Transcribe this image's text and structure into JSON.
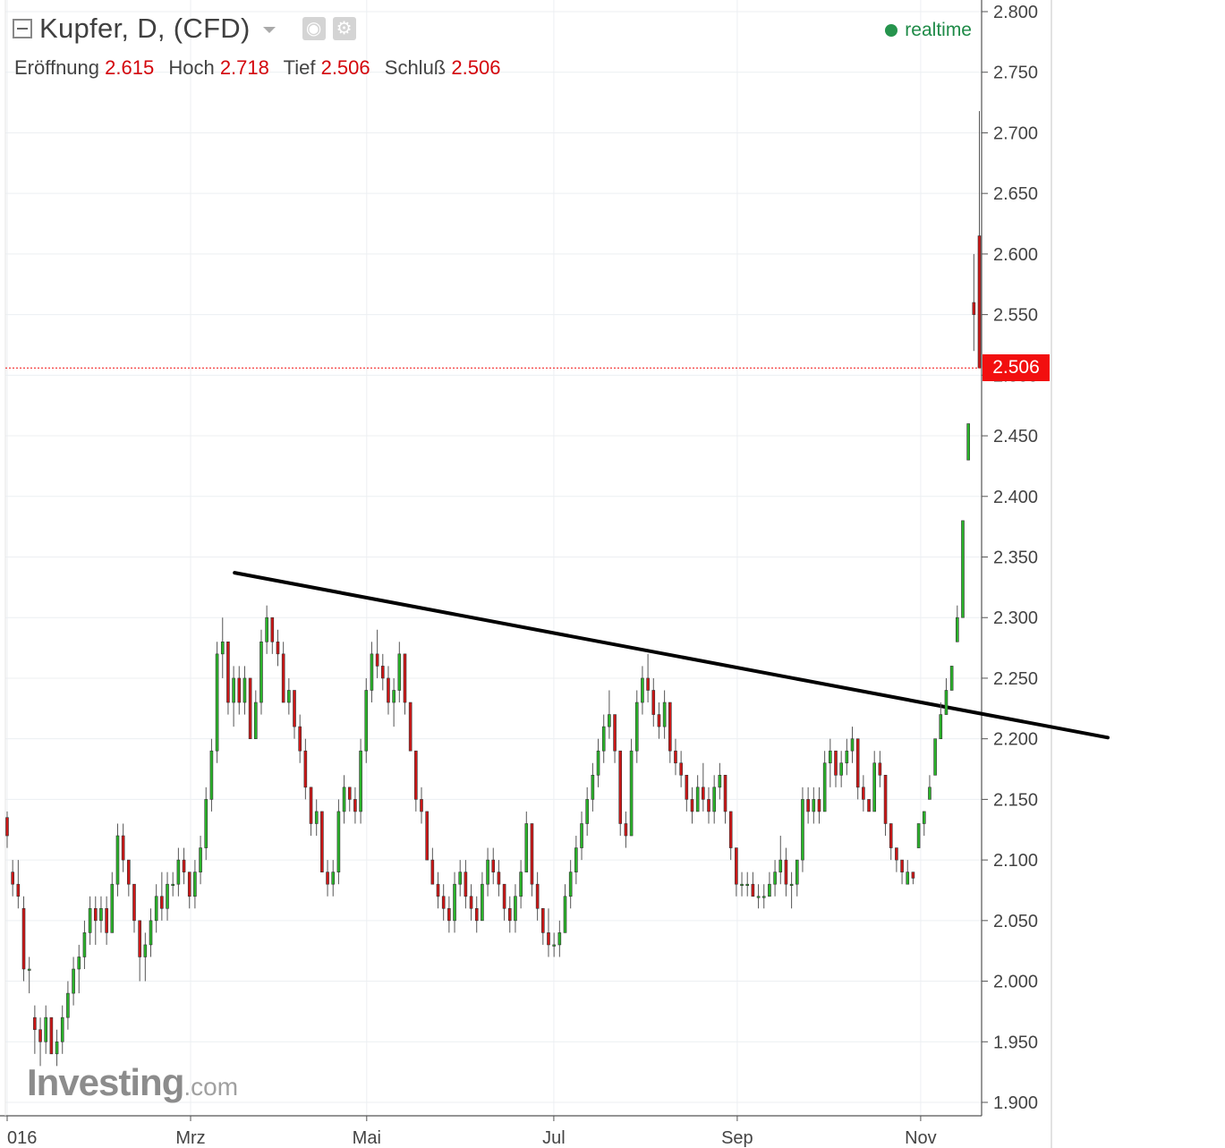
{
  "header": {
    "title": "Kupfer, D, (CFD)",
    "realtime_label": "realtime",
    "ohlc": {
      "open_label": "Eröffnung",
      "open": "2.615",
      "high_label": "Hoch",
      "high": "2.718",
      "low_label": "Tief",
      "low": "2.506",
      "close_label": "Schluß",
      "close": "2.506"
    }
  },
  "last_price_tag": "2.506",
  "logo": {
    "main": "Investing",
    "suffix": ".com"
  },
  "colors": {
    "up": "#2ab32a",
    "down": "#cc1717",
    "price_line": "#f20f0f",
    "trendline": "#000000"
  },
  "chart_data": {
    "type": "candlestick",
    "ylim": [
      1.88,
      2.81
    ],
    "y_ticks": [
      "2.800",
      "2.750",
      "2.700",
      "2.650",
      "2.600",
      "2.550",
      "2.500",
      "2.450",
      "2.400",
      "2.350",
      "2.300",
      "2.250",
      "2.200",
      "2.150",
      "2.100",
      "2.050",
      "2.000",
      "1.950",
      "1.900"
    ],
    "x_labels": [
      {
        "label": "016",
        "day": 0
      },
      {
        "label": "Mrz",
        "day": 50
      },
      {
        "label": "Mai",
        "day": 98
      },
      {
        "label": "Jul",
        "day": 149
      },
      {
        "label": "Sep",
        "day": 199
      },
      {
        "label": "Nov",
        "day": 249
      }
    ],
    "x_day_range": [
      0,
      265
    ],
    "trendline": [
      {
        "day": 62,
        "price": 2.337
      },
      {
        "day": 300,
        "price": 2.201
      }
    ],
    "last_price": 2.506,
    "candles": [
      [
        2.135,
        2.14,
        2.11,
        2.12
      ],
      [
        2.09,
        2.1,
        2.07,
        2.08
      ],
      [
        2.08,
        2.1,
        2.06,
        2.07
      ],
      [
        2.06,
        2.07,
        2.0,
        2.01
      ],
      [
        2.01,
        2.02,
        1.99,
        2.01
      ],
      [
        1.97,
        1.98,
        1.94,
        1.96
      ],
      [
        1.96,
        1.97,
        1.93,
        1.95
      ],
      [
        1.95,
        1.98,
        1.94,
        1.97
      ],
      [
        1.97,
        1.97,
        1.94,
        1.94
      ],
      [
        1.94,
        1.96,
        1.93,
        1.95
      ],
      [
        1.95,
        1.98,
        1.94,
        1.97
      ],
      [
        1.97,
        2.0,
        1.96,
        1.99
      ],
      [
        1.99,
        2.02,
        1.98,
        2.01
      ],
      [
        2.01,
        2.03,
        1.99,
        2.02
      ],
      [
        2.02,
        2.05,
        2.01,
        2.04
      ],
      [
        2.04,
        2.07,
        2.03,
        2.06
      ],
      [
        2.06,
        2.07,
        2.03,
        2.05
      ],
      [
        2.05,
        2.07,
        2.04,
        2.06
      ],
      [
        2.06,
        2.07,
        2.03,
        2.04
      ],
      [
        2.04,
        2.09,
        2.04,
        2.08
      ],
      [
        2.08,
        2.13,
        2.07,
        2.12
      ],
      [
        2.12,
        2.13,
        2.09,
        2.1
      ],
      [
        2.1,
        2.1,
        2.07,
        2.08
      ],
      [
        2.08,
        2.08,
        2.04,
        2.05
      ],
      [
        2.05,
        2.05,
        2.0,
        2.02
      ],
      [
        2.02,
        2.04,
        2.0,
        2.03
      ],
      [
        2.03,
        2.06,
        2.02,
        2.05
      ],
      [
        2.05,
        2.08,
        2.04,
        2.07
      ],
      [
        2.07,
        2.09,
        2.05,
        2.06
      ],
      [
        2.06,
        2.09,
        2.05,
        2.08
      ],
      [
        2.08,
        2.09,
        2.07,
        2.08
      ],
      [
        2.08,
        2.11,
        2.07,
        2.1
      ],
      [
        2.1,
        2.11,
        2.08,
        2.09
      ],
      [
        2.09,
        2.09,
        2.06,
        2.07
      ],
      [
        2.07,
        2.1,
        2.06,
        2.09
      ],
      [
        2.09,
        2.12,
        2.08,
        2.11
      ],
      [
        2.11,
        2.16,
        2.1,
        2.15
      ],
      [
        2.15,
        2.2,
        2.14,
        2.19
      ],
      [
        2.19,
        2.28,
        2.18,
        2.27
      ],
      [
        2.27,
        2.3,
        2.25,
        2.28
      ],
      [
        2.28,
        2.28,
        2.22,
        2.23
      ],
      [
        2.23,
        2.26,
        2.21,
        2.25
      ],
      [
        2.25,
        2.26,
        2.22,
        2.23
      ],
      [
        2.23,
        2.26,
        2.22,
        2.25
      ],
      [
        2.25,
        2.25,
        2.2,
        2.2
      ],
      [
        2.2,
        2.24,
        2.2,
        2.23
      ],
      [
        2.23,
        2.29,
        2.22,
        2.28
      ],
      [
        2.28,
        2.31,
        2.27,
        2.3
      ],
      [
        2.3,
        2.3,
        2.27,
        2.28
      ],
      [
        2.28,
        2.29,
        2.26,
        2.27
      ],
      [
        2.27,
        2.28,
        2.23,
        2.23
      ],
      [
        2.23,
        2.25,
        2.22,
        2.24
      ],
      [
        2.24,
        2.24,
        2.2,
        2.21
      ],
      [
        2.21,
        2.22,
        2.18,
        2.19
      ],
      [
        2.19,
        2.2,
        2.15,
        2.16
      ],
      [
        2.16,
        2.16,
        2.12,
        2.13
      ],
      [
        2.13,
        2.15,
        2.12,
        2.14
      ],
      [
        2.14,
        2.14,
        2.09,
        2.09
      ],
      [
        2.09,
        2.1,
        2.07,
        2.08
      ],
      [
        2.08,
        2.1,
        2.07,
        2.09
      ],
      [
        2.09,
        2.15,
        2.08,
        2.14
      ],
      [
        2.14,
        2.17,
        2.13,
        2.16
      ],
      [
        2.16,
        2.16,
        2.14,
        2.15
      ],
      [
        2.15,
        2.16,
        2.13,
        2.14
      ],
      [
        2.14,
        2.2,
        2.13,
        2.19
      ],
      [
        2.19,
        2.25,
        2.18,
        2.24
      ],
      [
        2.24,
        2.28,
        2.23,
        2.27
      ],
      [
        2.27,
        2.29,
        2.25,
        2.26
      ],
      [
        2.26,
        2.27,
        2.24,
        2.25
      ],
      [
        2.25,
        2.26,
        2.22,
        2.23
      ],
      [
        2.23,
        2.25,
        2.21,
        2.24
      ],
      [
        2.24,
        2.28,
        2.23,
        2.27
      ],
      [
        2.27,
        2.27,
        2.22,
        2.23
      ],
      [
        2.23,
        2.23,
        2.19,
        2.19
      ],
      [
        2.19,
        2.19,
        2.14,
        2.15
      ],
      [
        2.15,
        2.16,
        2.13,
        2.14
      ],
      [
        2.14,
        2.14,
        2.1,
        2.1
      ],
      [
        2.1,
        2.11,
        2.08,
        2.08
      ],
      [
        2.08,
        2.09,
        2.06,
        2.07
      ],
      [
        2.07,
        2.08,
        2.05,
        2.06
      ],
      [
        2.06,
        2.07,
        2.04,
        2.05
      ],
      [
        2.05,
        2.09,
        2.04,
        2.08
      ],
      [
        2.08,
        2.1,
        2.07,
        2.09
      ],
      [
        2.09,
        2.1,
        2.06,
        2.07
      ],
      [
        2.07,
        2.08,
        2.05,
        2.06
      ],
      [
        2.06,
        2.07,
        2.04,
        2.05
      ],
      [
        2.05,
        2.09,
        2.05,
        2.08
      ],
      [
        2.08,
        2.11,
        2.07,
        2.1
      ],
      [
        2.1,
        2.11,
        2.08,
        2.09
      ],
      [
        2.09,
        2.1,
        2.07,
        2.08
      ],
      [
        2.08,
        2.08,
        2.05,
        2.06
      ],
      [
        2.06,
        2.07,
        2.04,
        2.05
      ],
      [
        2.05,
        2.08,
        2.04,
        2.07
      ],
      [
        2.07,
        2.1,
        2.06,
        2.09
      ],
      [
        2.09,
        2.14,
        2.09,
        2.13
      ],
      [
        2.13,
        2.13,
        2.07,
        2.08
      ],
      [
        2.08,
        2.09,
        2.05,
        2.06
      ],
      [
        2.06,
        2.06,
        2.03,
        2.04
      ],
      [
        2.04,
        2.06,
        2.02,
        2.03
      ],
      [
        2.03,
        2.04,
        2.02,
        2.03
      ],
      [
        2.03,
        2.05,
        2.02,
        2.04
      ],
      [
        2.04,
        2.08,
        2.04,
        2.07
      ],
      [
        2.07,
        2.1,
        2.06,
        2.09
      ],
      [
        2.09,
        2.12,
        2.08,
        2.11
      ],
      [
        2.11,
        2.14,
        2.1,
        2.13
      ],
      [
        2.13,
        2.16,
        2.12,
        2.15
      ],
      [
        2.15,
        2.18,
        2.14,
        2.17
      ],
      [
        2.17,
        2.2,
        2.16,
        2.19
      ],
      [
        2.19,
        2.22,
        2.18,
        2.21
      ],
      [
        2.21,
        2.24,
        2.2,
        2.22
      ],
      [
        2.22,
        2.22,
        2.18,
        2.19
      ],
      [
        2.19,
        2.19,
        2.12,
        2.13
      ],
      [
        2.13,
        2.14,
        2.11,
        2.12
      ],
      [
        2.12,
        2.2,
        2.12,
        2.19
      ],
      [
        2.19,
        2.24,
        2.18,
        2.23
      ],
      [
        2.23,
        2.26,
        2.22,
        2.25
      ],
      [
        2.25,
        2.27,
        2.23,
        2.24
      ],
      [
        2.24,
        2.25,
        2.21,
        2.22
      ],
      [
        2.22,
        2.23,
        2.2,
        2.21
      ],
      [
        2.21,
        2.24,
        2.2,
        2.23
      ],
      [
        2.23,
        2.23,
        2.18,
        2.19
      ],
      [
        2.19,
        2.2,
        2.17,
        2.18
      ],
      [
        2.18,
        2.19,
        2.16,
        2.17
      ],
      [
        2.17,
        2.17,
        2.14,
        2.15
      ],
      [
        2.15,
        2.16,
        2.13,
        2.14
      ],
      [
        2.14,
        2.17,
        2.14,
        2.16
      ],
      [
        2.16,
        2.18,
        2.14,
        2.15
      ],
      [
        2.15,
        2.16,
        2.13,
        2.14
      ],
      [
        2.14,
        2.17,
        2.13,
        2.16
      ],
      [
        2.16,
        2.18,
        2.15,
        2.17
      ],
      [
        2.17,
        2.17,
        2.13,
        2.14
      ],
      [
        2.14,
        2.14,
        2.1,
        2.11
      ],
      [
        2.11,
        2.11,
        2.07,
        2.08
      ],
      [
        2.08,
        2.09,
        2.07,
        2.08
      ],
      [
        2.08,
        2.09,
        2.07,
        2.08
      ],
      [
        2.08,
        2.09,
        2.07,
        2.07
      ],
      [
        2.07,
        2.08,
        2.06,
        2.07
      ],
      [
        2.07,
        2.08,
        2.06,
        2.07
      ],
      [
        2.07,
        2.09,
        2.07,
        2.08
      ],
      [
        2.08,
        2.1,
        2.07,
        2.09
      ],
      [
        2.09,
        2.12,
        2.08,
        2.1
      ],
      [
        2.1,
        2.11,
        2.07,
        2.08
      ],
      [
        2.08,
        2.09,
        2.06,
        2.08
      ],
      [
        2.08,
        2.1,
        2.07,
        2.1
      ],
      [
        2.1,
        2.16,
        2.09,
        2.15
      ],
      [
        2.15,
        2.16,
        2.13,
        2.14
      ],
      [
        2.14,
        2.16,
        2.13,
        2.15
      ],
      [
        2.15,
        2.16,
        2.13,
        2.14
      ],
      [
        2.14,
        2.19,
        2.14,
        2.18
      ],
      [
        2.18,
        2.2,
        2.16,
        2.19
      ],
      [
        2.19,
        2.19,
        2.16,
        2.17
      ],
      [
        2.17,
        2.19,
        2.16,
        2.18
      ],
      [
        2.18,
        2.2,
        2.17,
        2.19
      ],
      [
        2.19,
        2.21,
        2.18,
        2.2
      ],
      [
        2.2,
        2.2,
        2.15,
        2.16
      ],
      [
        2.16,
        2.17,
        2.14,
        2.15
      ],
      [
        2.15,
        2.15,
        2.14,
        2.14
      ],
      [
        2.14,
        2.19,
        2.14,
        2.18
      ],
      [
        2.18,
        2.19,
        2.16,
        2.17
      ],
      [
        2.17,
        2.17,
        2.12,
        2.13
      ],
      [
        2.13,
        2.13,
        2.1,
        2.11
      ],
      [
        2.11,
        2.11,
        2.09,
        2.1
      ],
      [
        2.1,
        2.1,
        2.08,
        2.09
      ],
      [
        2.08,
        2.1,
        2.08,
        2.09
      ],
      [
        2.09,
        2.09,
        2.08,
        2.085
      ],
      [
        2.11,
        2.13,
        2.11,
        2.13
      ],
      [
        2.13,
        2.14,
        2.12,
        2.14
      ],
      [
        2.15,
        2.17,
        2.15,
        2.16
      ],
      [
        2.17,
        2.2,
        2.17,
        2.2
      ],
      [
        2.2,
        2.23,
        2.2,
        2.22
      ],
      [
        2.22,
        2.25,
        2.22,
        2.24
      ],
      [
        2.24,
        2.26,
        2.24,
        2.26
      ],
      [
        2.28,
        2.31,
        2.28,
        2.3
      ],
      [
        2.3,
        2.38,
        2.3,
        2.38
      ],
      [
        2.43,
        2.46,
        2.43,
        2.46
      ],
      [
        2.56,
        2.6,
        2.52,
        2.55
      ],
      [
        2.615,
        2.718,
        2.506,
        2.506
      ]
    ]
  }
}
